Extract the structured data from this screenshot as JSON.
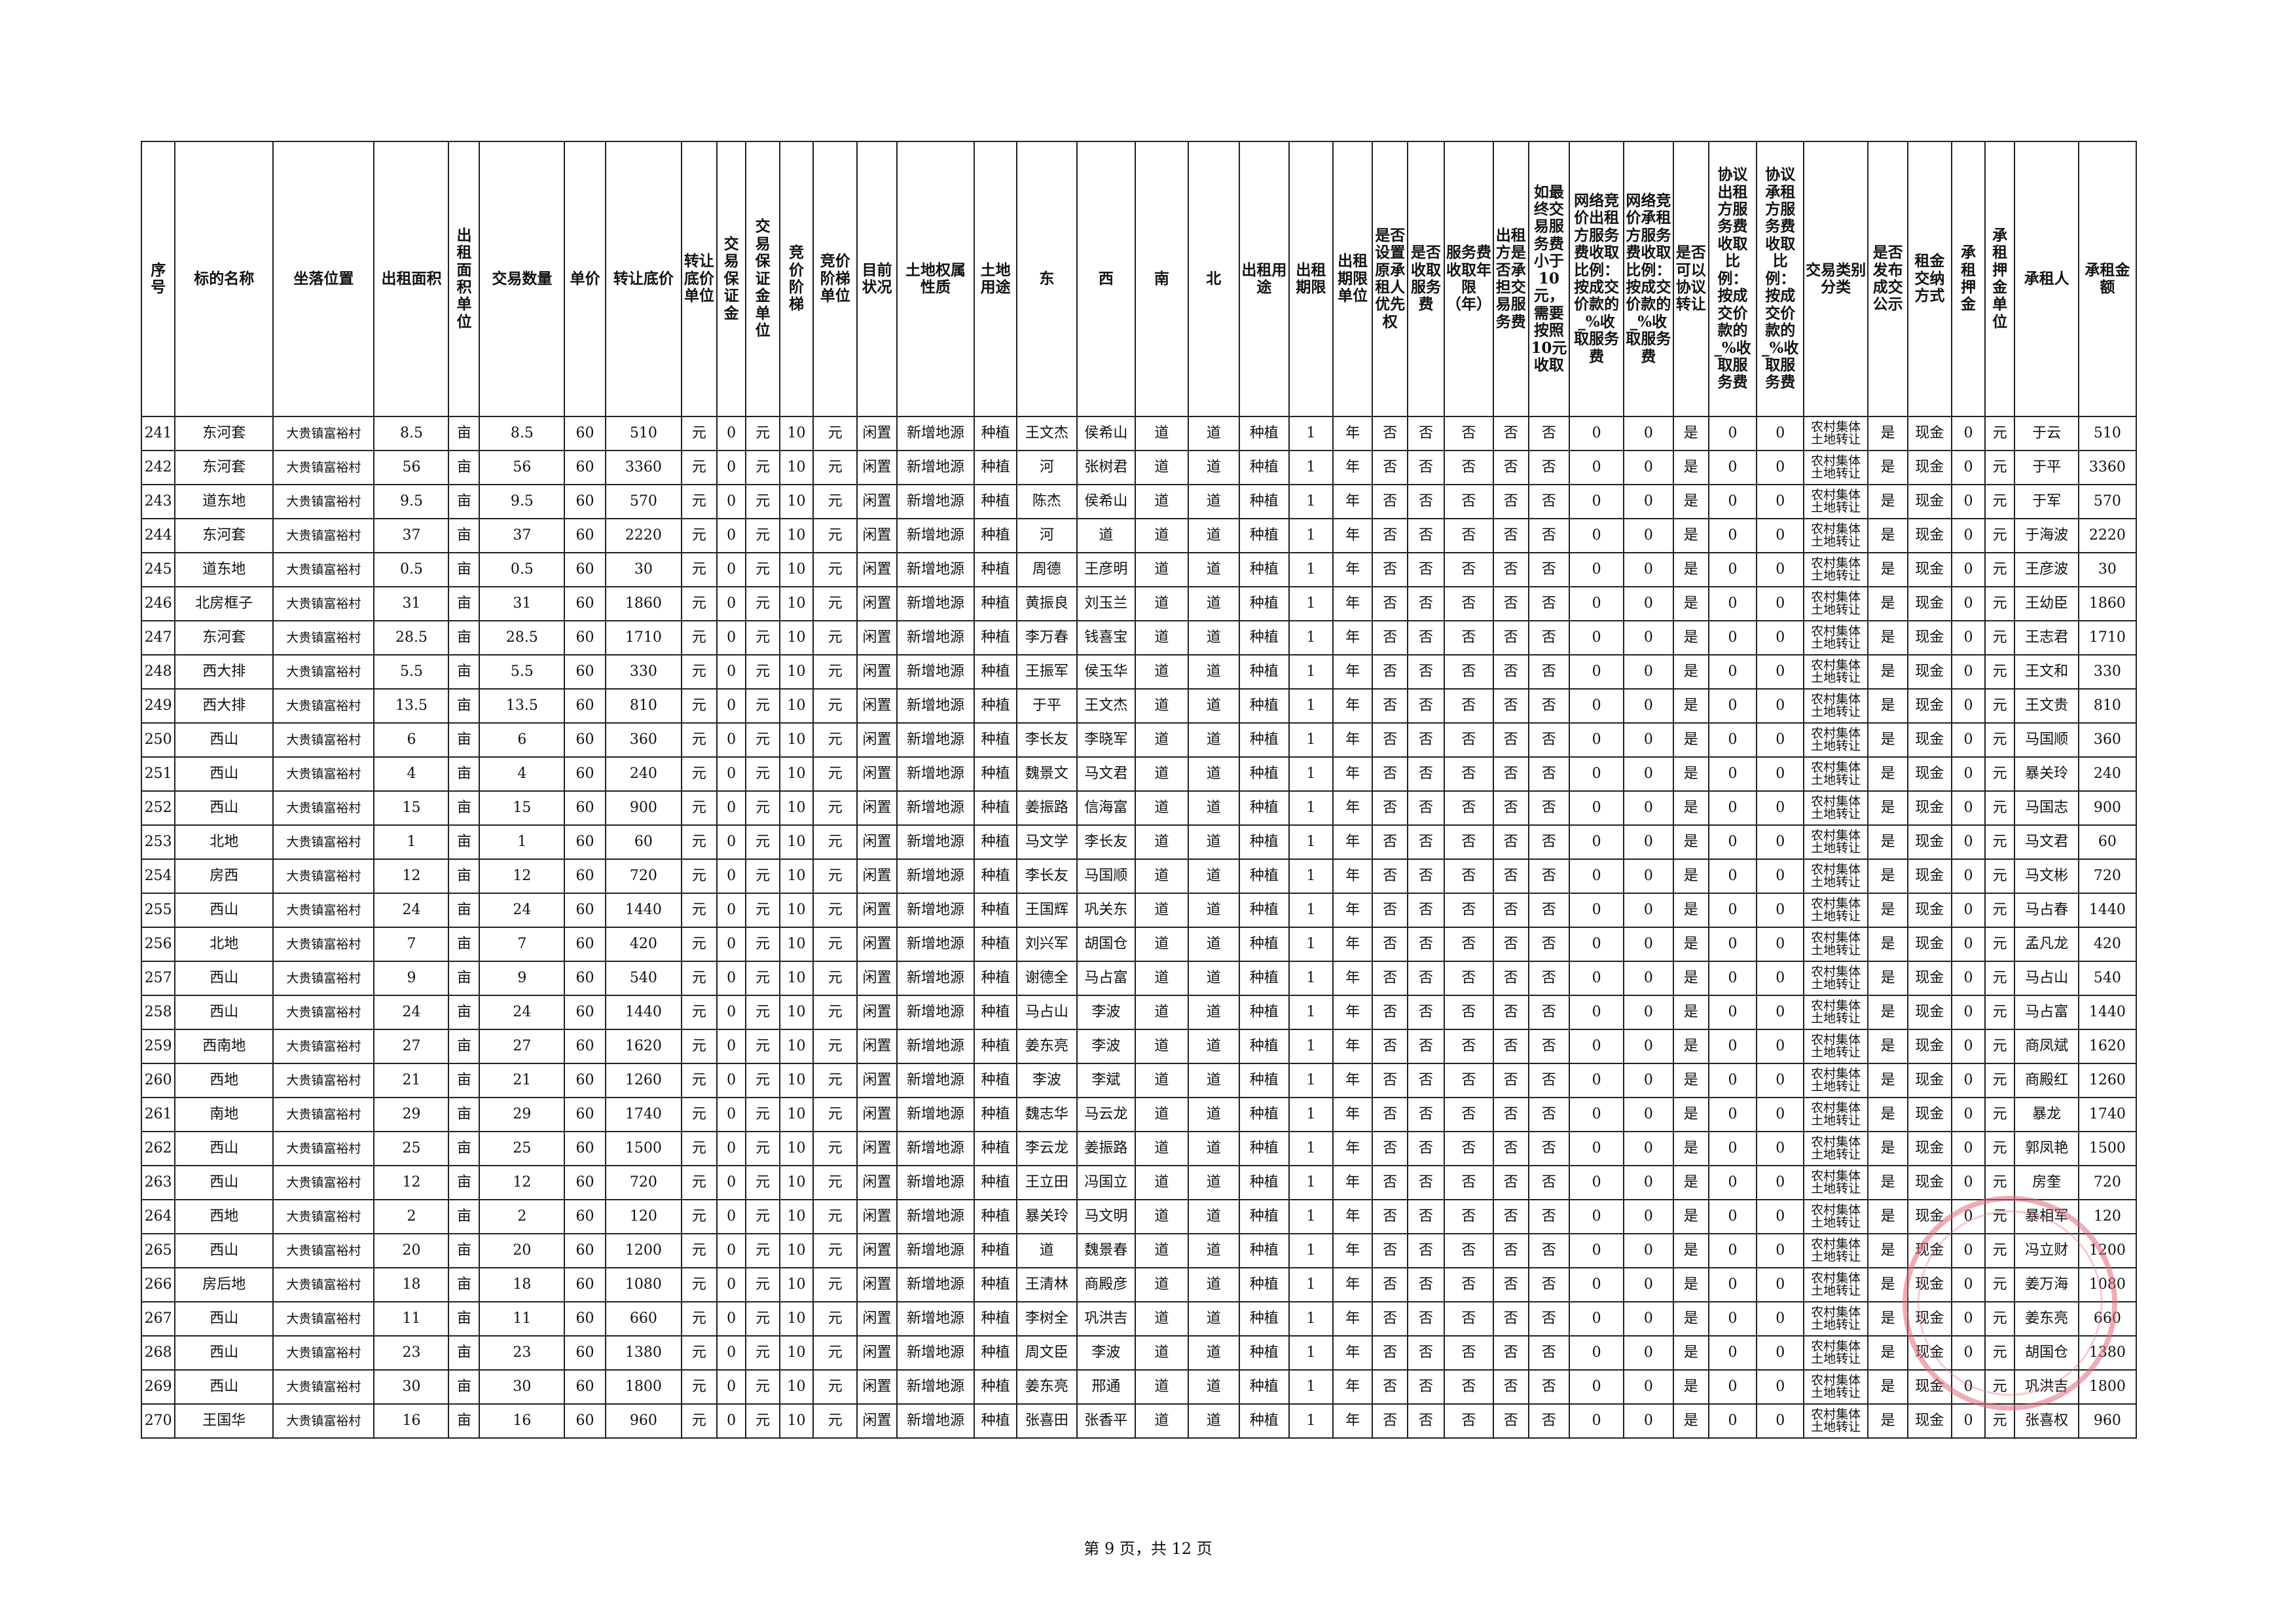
{
  "header": {
    "columns": [
      "序号",
      "标的名称",
      "坐落位置",
      "出租面积",
      "出租面积单位",
      "交易数量",
      "单价",
      "转让底价",
      "转让底价单位",
      "交易保证金",
      "交易保证金单位",
      "竞价阶梯",
      "竞价阶梯单位",
      "目前状况",
      "土地权属性质",
      "土地用途",
      "东",
      "西",
      "南",
      "北",
      "出租用途",
      "出租期限",
      "出租期限单位",
      "是否设置原承租人优先权",
      "是否收取服务费",
      "服务费收取年限（年）",
      "出租方是否承担交易服务费",
      "如最终交易服务费小于10元，需要按照10元收取",
      "网络竞价出租方服务费收取比例：按成交价款的_%收取服务费",
      "网络竞价承租方服务费收取比例：按成交价款的_%收取服务费",
      "是否可以协议转让",
      "协议出租方服务费收取比例：按成交价款的_%收取服务费",
      "协议承租方服务费收取比例：按成交价款的_%收取服务费",
      "交易类别分类",
      "是否发布成交公示",
      "租金交纳方式",
      "承租押金",
      "承租押金单位",
      "承租人",
      "承租金额"
    ]
  },
  "table": {
    "rows": [
      [
        "241",
        "东河套",
        "大贵镇富裕村",
        "8.5",
        "亩",
        "8.5",
        "60",
        "510",
        "元",
        "0",
        "元",
        "10",
        "元",
        "闲置",
        "新增地源",
        "种植",
        "王文杰",
        "侯希山",
        "道",
        "道",
        "种植",
        "1",
        "年",
        "否",
        "否",
        "否",
        "否",
        "否",
        "0",
        "0",
        "是",
        "0",
        "0",
        "农村集体土地转让",
        "是",
        "现金",
        "0",
        "元",
        "于云",
        "510"
      ],
      [
        "242",
        "东河套",
        "大贵镇富裕村",
        "56",
        "亩",
        "56",
        "60",
        "3360",
        "元",
        "0",
        "元",
        "10",
        "元",
        "闲置",
        "新增地源",
        "种植",
        "河",
        "张树君",
        "道",
        "道",
        "种植",
        "1",
        "年",
        "否",
        "否",
        "否",
        "否",
        "否",
        "0",
        "0",
        "是",
        "0",
        "0",
        "农村集体土地转让",
        "是",
        "现金",
        "0",
        "元",
        "于平",
        "3360"
      ],
      [
        "243",
        "道东地",
        "大贵镇富裕村",
        "9.5",
        "亩",
        "9.5",
        "60",
        "570",
        "元",
        "0",
        "元",
        "10",
        "元",
        "闲置",
        "新增地源",
        "种植",
        "陈杰",
        "侯希山",
        "道",
        "道",
        "种植",
        "1",
        "年",
        "否",
        "否",
        "否",
        "否",
        "否",
        "0",
        "0",
        "是",
        "0",
        "0",
        "农村集体土地转让",
        "是",
        "现金",
        "0",
        "元",
        "于军",
        "570"
      ],
      [
        "244",
        "东河套",
        "大贵镇富裕村",
        "37",
        "亩",
        "37",
        "60",
        "2220",
        "元",
        "0",
        "元",
        "10",
        "元",
        "闲置",
        "新增地源",
        "种植",
        "河",
        "道",
        "道",
        "道",
        "种植",
        "1",
        "年",
        "否",
        "否",
        "否",
        "否",
        "否",
        "0",
        "0",
        "是",
        "0",
        "0",
        "农村集体土地转让",
        "是",
        "现金",
        "0",
        "元",
        "于海波",
        "2220"
      ],
      [
        "245",
        "道东地",
        "大贵镇富裕村",
        "0.5",
        "亩",
        "0.5",
        "60",
        "30",
        "元",
        "0",
        "元",
        "10",
        "元",
        "闲置",
        "新增地源",
        "种植",
        "周德",
        "王彦明",
        "道",
        "道",
        "种植",
        "1",
        "年",
        "否",
        "否",
        "否",
        "否",
        "否",
        "0",
        "0",
        "是",
        "0",
        "0",
        "农村集体土地转让",
        "是",
        "现金",
        "0",
        "元",
        "王彦波",
        "30"
      ],
      [
        "246",
        "北房框子",
        "大贵镇富裕村",
        "31",
        "亩",
        "31",
        "60",
        "1860",
        "元",
        "0",
        "元",
        "10",
        "元",
        "闲置",
        "新增地源",
        "种植",
        "黄振良",
        "刘玉兰",
        "道",
        "道",
        "种植",
        "1",
        "年",
        "否",
        "否",
        "否",
        "否",
        "否",
        "0",
        "0",
        "是",
        "0",
        "0",
        "农村集体土地转让",
        "是",
        "现金",
        "0",
        "元",
        "王幼臣",
        "1860"
      ],
      [
        "247",
        "东河套",
        "大贵镇富裕村",
        "28.5",
        "亩",
        "28.5",
        "60",
        "1710",
        "元",
        "0",
        "元",
        "10",
        "元",
        "闲置",
        "新增地源",
        "种植",
        "李万春",
        "钱喜宝",
        "道",
        "道",
        "种植",
        "1",
        "年",
        "否",
        "否",
        "否",
        "否",
        "否",
        "0",
        "0",
        "是",
        "0",
        "0",
        "农村集体土地转让",
        "是",
        "现金",
        "0",
        "元",
        "王志君",
        "1710"
      ],
      [
        "248",
        "西大排",
        "大贵镇富裕村",
        "5.5",
        "亩",
        "5.5",
        "60",
        "330",
        "元",
        "0",
        "元",
        "10",
        "元",
        "闲置",
        "新增地源",
        "种植",
        "王振军",
        "侯玉华",
        "道",
        "道",
        "种植",
        "1",
        "年",
        "否",
        "否",
        "否",
        "否",
        "否",
        "0",
        "0",
        "是",
        "0",
        "0",
        "农村集体土地转让",
        "是",
        "现金",
        "0",
        "元",
        "王文和",
        "330"
      ],
      [
        "249",
        "西大排",
        "大贵镇富裕村",
        "13.5",
        "亩",
        "13.5",
        "60",
        "810",
        "元",
        "0",
        "元",
        "10",
        "元",
        "闲置",
        "新增地源",
        "种植",
        "于平",
        "王文杰",
        "道",
        "道",
        "种植",
        "1",
        "年",
        "否",
        "否",
        "否",
        "否",
        "否",
        "0",
        "0",
        "是",
        "0",
        "0",
        "农村集体土地转让",
        "是",
        "现金",
        "0",
        "元",
        "王文贵",
        "810"
      ],
      [
        "250",
        "西山",
        "大贵镇富裕村",
        "6",
        "亩",
        "6",
        "60",
        "360",
        "元",
        "0",
        "元",
        "10",
        "元",
        "闲置",
        "新增地源",
        "种植",
        "李长友",
        "李晓军",
        "道",
        "道",
        "种植",
        "1",
        "年",
        "否",
        "否",
        "否",
        "否",
        "否",
        "0",
        "0",
        "是",
        "0",
        "0",
        "农村集体土地转让",
        "是",
        "现金",
        "0",
        "元",
        "马国顺",
        "360"
      ],
      [
        "251",
        "西山",
        "大贵镇富裕村",
        "4",
        "亩",
        "4",
        "60",
        "240",
        "元",
        "0",
        "元",
        "10",
        "元",
        "闲置",
        "新增地源",
        "种植",
        "魏景文",
        "马文君",
        "道",
        "道",
        "种植",
        "1",
        "年",
        "否",
        "否",
        "否",
        "否",
        "否",
        "0",
        "0",
        "是",
        "0",
        "0",
        "农村集体土地转让",
        "是",
        "现金",
        "0",
        "元",
        "暴关玲",
        "240"
      ],
      [
        "252",
        "西山",
        "大贵镇富裕村",
        "15",
        "亩",
        "15",
        "60",
        "900",
        "元",
        "0",
        "元",
        "10",
        "元",
        "闲置",
        "新增地源",
        "种植",
        "姜振路",
        "信海富",
        "道",
        "道",
        "种植",
        "1",
        "年",
        "否",
        "否",
        "否",
        "否",
        "否",
        "0",
        "0",
        "是",
        "0",
        "0",
        "农村集体土地转让",
        "是",
        "现金",
        "0",
        "元",
        "马国志",
        "900"
      ],
      [
        "253",
        "北地",
        "大贵镇富裕村",
        "1",
        "亩",
        "1",
        "60",
        "60",
        "元",
        "0",
        "元",
        "10",
        "元",
        "闲置",
        "新增地源",
        "种植",
        "马文学",
        "李长友",
        "道",
        "道",
        "种植",
        "1",
        "年",
        "否",
        "否",
        "否",
        "否",
        "否",
        "0",
        "0",
        "是",
        "0",
        "0",
        "农村集体土地转让",
        "是",
        "现金",
        "0",
        "元",
        "马文君",
        "60"
      ],
      [
        "254",
        "房西",
        "大贵镇富裕村",
        "12",
        "亩",
        "12",
        "60",
        "720",
        "元",
        "0",
        "元",
        "10",
        "元",
        "闲置",
        "新增地源",
        "种植",
        "李长友",
        "马国顺",
        "道",
        "道",
        "种植",
        "1",
        "年",
        "否",
        "否",
        "否",
        "否",
        "否",
        "0",
        "0",
        "是",
        "0",
        "0",
        "农村集体土地转让",
        "是",
        "现金",
        "0",
        "元",
        "马文彬",
        "720"
      ],
      [
        "255",
        "西山",
        "大贵镇富裕村",
        "24",
        "亩",
        "24",
        "60",
        "1440",
        "元",
        "0",
        "元",
        "10",
        "元",
        "闲置",
        "新增地源",
        "种植",
        "王国辉",
        "巩关东",
        "道",
        "道",
        "种植",
        "1",
        "年",
        "否",
        "否",
        "否",
        "否",
        "否",
        "0",
        "0",
        "是",
        "0",
        "0",
        "农村集体土地转让",
        "是",
        "现金",
        "0",
        "元",
        "马占春",
        "1440"
      ],
      [
        "256",
        "北地",
        "大贵镇富裕村",
        "7",
        "亩",
        "7",
        "60",
        "420",
        "元",
        "0",
        "元",
        "10",
        "元",
        "闲置",
        "新增地源",
        "种植",
        "刘兴军",
        "胡国仓",
        "道",
        "道",
        "种植",
        "1",
        "年",
        "否",
        "否",
        "否",
        "否",
        "否",
        "0",
        "0",
        "是",
        "0",
        "0",
        "农村集体土地转让",
        "是",
        "现金",
        "0",
        "元",
        "孟凡龙",
        "420"
      ],
      [
        "257",
        "西山",
        "大贵镇富裕村",
        "9",
        "亩",
        "9",
        "60",
        "540",
        "元",
        "0",
        "元",
        "10",
        "元",
        "闲置",
        "新增地源",
        "种植",
        "谢德全",
        "马占富",
        "道",
        "道",
        "种植",
        "1",
        "年",
        "否",
        "否",
        "否",
        "否",
        "否",
        "0",
        "0",
        "是",
        "0",
        "0",
        "农村集体土地转让",
        "是",
        "现金",
        "0",
        "元",
        "马占山",
        "540"
      ],
      [
        "258",
        "西山",
        "大贵镇富裕村",
        "24",
        "亩",
        "24",
        "60",
        "1440",
        "元",
        "0",
        "元",
        "10",
        "元",
        "闲置",
        "新增地源",
        "种植",
        "马占山",
        "李波",
        "道",
        "道",
        "种植",
        "1",
        "年",
        "否",
        "否",
        "否",
        "否",
        "否",
        "0",
        "0",
        "是",
        "0",
        "0",
        "农村集体土地转让",
        "是",
        "现金",
        "0",
        "元",
        "马占富",
        "1440"
      ],
      [
        "259",
        "西南地",
        "大贵镇富裕村",
        "27",
        "亩",
        "27",
        "60",
        "1620",
        "元",
        "0",
        "元",
        "10",
        "元",
        "闲置",
        "新增地源",
        "种植",
        "姜东亮",
        "李波",
        "道",
        "道",
        "种植",
        "1",
        "年",
        "否",
        "否",
        "否",
        "否",
        "否",
        "0",
        "0",
        "是",
        "0",
        "0",
        "农村集体土地转让",
        "是",
        "现金",
        "0",
        "元",
        "商凤斌",
        "1620"
      ],
      [
        "260",
        "西地",
        "大贵镇富裕村",
        "21",
        "亩",
        "21",
        "60",
        "1260",
        "元",
        "0",
        "元",
        "10",
        "元",
        "闲置",
        "新增地源",
        "种植",
        "李波",
        "李斌",
        "道",
        "道",
        "种植",
        "1",
        "年",
        "否",
        "否",
        "否",
        "否",
        "否",
        "0",
        "0",
        "是",
        "0",
        "0",
        "农村集体土地转让",
        "是",
        "现金",
        "0",
        "元",
        "商殿红",
        "1260"
      ],
      [
        "261",
        "南地",
        "大贵镇富裕村",
        "29",
        "亩",
        "29",
        "60",
        "1740",
        "元",
        "0",
        "元",
        "10",
        "元",
        "闲置",
        "新增地源",
        "种植",
        "魏志华",
        "马云龙",
        "道",
        "道",
        "种植",
        "1",
        "年",
        "否",
        "否",
        "否",
        "否",
        "否",
        "0",
        "0",
        "是",
        "0",
        "0",
        "农村集体土地转让",
        "是",
        "现金",
        "0",
        "元",
        "暴龙",
        "1740"
      ],
      [
        "262",
        "西山",
        "大贵镇富裕村",
        "25",
        "亩",
        "25",
        "60",
        "1500",
        "元",
        "0",
        "元",
        "10",
        "元",
        "闲置",
        "新增地源",
        "种植",
        "李云龙",
        "姜振路",
        "道",
        "道",
        "种植",
        "1",
        "年",
        "否",
        "否",
        "否",
        "否",
        "否",
        "0",
        "0",
        "是",
        "0",
        "0",
        "农村集体土地转让",
        "是",
        "现金",
        "0",
        "元",
        "郭凤艳",
        "1500"
      ],
      [
        "263",
        "西山",
        "大贵镇富裕村",
        "12",
        "亩",
        "12",
        "60",
        "720",
        "元",
        "0",
        "元",
        "10",
        "元",
        "闲置",
        "新增地源",
        "种植",
        "王立田",
        "冯国立",
        "道",
        "道",
        "种植",
        "1",
        "年",
        "否",
        "否",
        "否",
        "否",
        "否",
        "0",
        "0",
        "是",
        "0",
        "0",
        "农村集体土地转让",
        "是",
        "现金",
        "0",
        "元",
        "房奎",
        "720"
      ],
      [
        "264",
        "西地",
        "大贵镇富裕村",
        "2",
        "亩",
        "2",
        "60",
        "120",
        "元",
        "0",
        "元",
        "10",
        "元",
        "闲置",
        "新增地源",
        "种植",
        "暴关玲",
        "马文明",
        "道",
        "道",
        "种植",
        "1",
        "年",
        "否",
        "否",
        "否",
        "否",
        "否",
        "0",
        "0",
        "是",
        "0",
        "0",
        "农村集体土地转让",
        "是",
        "现金",
        "0",
        "元",
        "暴相军",
        "120"
      ],
      [
        "265",
        "西山",
        "大贵镇富裕村",
        "20",
        "亩",
        "20",
        "60",
        "1200",
        "元",
        "0",
        "元",
        "10",
        "元",
        "闲置",
        "新增地源",
        "种植",
        "道",
        "魏景春",
        "道",
        "道",
        "种植",
        "1",
        "年",
        "否",
        "否",
        "否",
        "否",
        "否",
        "0",
        "0",
        "是",
        "0",
        "0",
        "农村集体土地转让",
        "是",
        "现金",
        "0",
        "元",
        "冯立财",
        "1200"
      ],
      [
        "266",
        "房后地",
        "大贵镇富裕村",
        "18",
        "亩",
        "18",
        "60",
        "1080",
        "元",
        "0",
        "元",
        "10",
        "元",
        "闲置",
        "新增地源",
        "种植",
        "王清林",
        "商殿彦",
        "道",
        "道",
        "种植",
        "1",
        "年",
        "否",
        "否",
        "否",
        "否",
        "否",
        "0",
        "0",
        "是",
        "0",
        "0",
        "农村集体土地转让",
        "是",
        "现金",
        "0",
        "元",
        "姜万海",
        "1080"
      ],
      [
        "267",
        "西山",
        "大贵镇富裕村",
        "11",
        "亩",
        "11",
        "60",
        "660",
        "元",
        "0",
        "元",
        "10",
        "元",
        "闲置",
        "新增地源",
        "种植",
        "李树全",
        "巩洪吉",
        "道",
        "道",
        "种植",
        "1",
        "年",
        "否",
        "否",
        "否",
        "否",
        "否",
        "0",
        "0",
        "是",
        "0",
        "0",
        "农村集体土地转让",
        "是",
        "现金",
        "0",
        "元",
        "姜东亮",
        "660"
      ],
      [
        "268",
        "西山",
        "大贵镇富裕村",
        "23",
        "亩",
        "23",
        "60",
        "1380",
        "元",
        "0",
        "元",
        "10",
        "元",
        "闲置",
        "新增地源",
        "种植",
        "周文臣",
        "李波",
        "道",
        "道",
        "种植",
        "1",
        "年",
        "否",
        "否",
        "否",
        "否",
        "否",
        "0",
        "0",
        "是",
        "0",
        "0",
        "农村集体土地转让",
        "是",
        "现金",
        "0",
        "元",
        "胡国仓",
        "1380"
      ],
      [
        "269",
        "西山",
        "大贵镇富裕村",
        "30",
        "亩",
        "30",
        "60",
        "1800",
        "元",
        "0",
        "元",
        "10",
        "元",
        "闲置",
        "新增地源",
        "种植",
        "姜东亮",
        "邢通",
        "道",
        "道",
        "种植",
        "1",
        "年",
        "否",
        "否",
        "否",
        "否",
        "否",
        "0",
        "0",
        "是",
        "0",
        "0",
        "农村集体土地转让",
        "是",
        "现金",
        "0",
        "元",
        "巩洪吉",
        "1800"
      ],
      [
        "270",
        "王国华",
        "大贵镇富裕村",
        "16",
        "亩",
        "16",
        "60",
        "960",
        "元",
        "0",
        "元",
        "10",
        "元",
        "闲置",
        "新增地源",
        "种植",
        "张喜田",
        "张香平",
        "道",
        "道",
        "种植",
        "1",
        "年",
        "否",
        "否",
        "否",
        "否",
        "否",
        "0",
        "0",
        "是",
        "0",
        "0",
        "农村集体土地转让",
        "是",
        "现金",
        "0",
        "元",
        "张喜权",
        "960"
      ]
    ]
  },
  "footer": {
    "page": "第 9 页，共 12 页"
  }
}
